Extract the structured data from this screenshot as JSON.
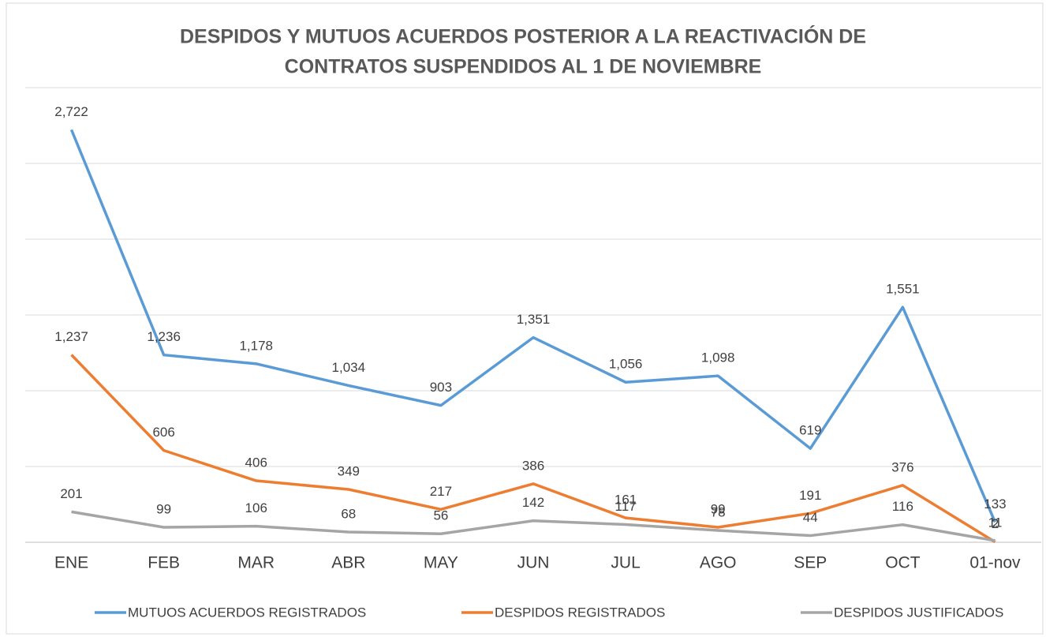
{
  "chart_data": {
    "type": "line",
    "title": [
      "DESPIDOS Y MUTUOS ACUERDOS POSTERIOR A LA REACTIVACIÓN DE",
      "CONTRATOS SUSPENDIDOS AL 1 DE NOVIEMBRE"
    ],
    "categories": [
      "ENE",
      "FEB",
      "MAR",
      "ABR",
      "MAY",
      "JUN",
      "JUL",
      "AGO",
      "SEP",
      "OCT",
      "01-nov"
    ],
    "series": [
      {
        "name": "MUTUOS ACUERDOS REGISTRADOS",
        "color": "#5b9bd5",
        "values": [
          2722,
          1236,
          1178,
          1034,
          903,
          1351,
          1056,
          1098,
          619,
          1551,
          133
        ],
        "value_labels": [
          "2,722",
          "1,236",
          "1,178",
          "1,034",
          "903",
          "1,351",
          "1,056",
          "1,098",
          "619",
          "1,551",
          "133"
        ]
      },
      {
        "name": "DESPIDOS REGISTRADOS",
        "color": "#ed7d31",
        "values": [
          1237,
          606,
          406,
          349,
          217,
          386,
          161,
          99,
          191,
          376,
          2
        ],
        "value_labels": [
          "1,237",
          "606",
          "406",
          "349",
          "217",
          "386",
          "161",
          "99",
          "191",
          "376",
          "2"
        ]
      },
      {
        "name": "DESPIDOS JUSTIFICADOS",
        "color": "#a5a5a5",
        "values": [
          201,
          99,
          106,
          68,
          56,
          142,
          117,
          78,
          44,
          116,
          11
        ]
      }
    ],
    "ylim": [
      0,
      3000
    ],
    "yticks": [
      0,
      500,
      1000,
      1500,
      2000,
      2500,
      3000
    ],
    "ytick_labels": false,
    "grid": true,
    "legend": "bottom"
  }
}
